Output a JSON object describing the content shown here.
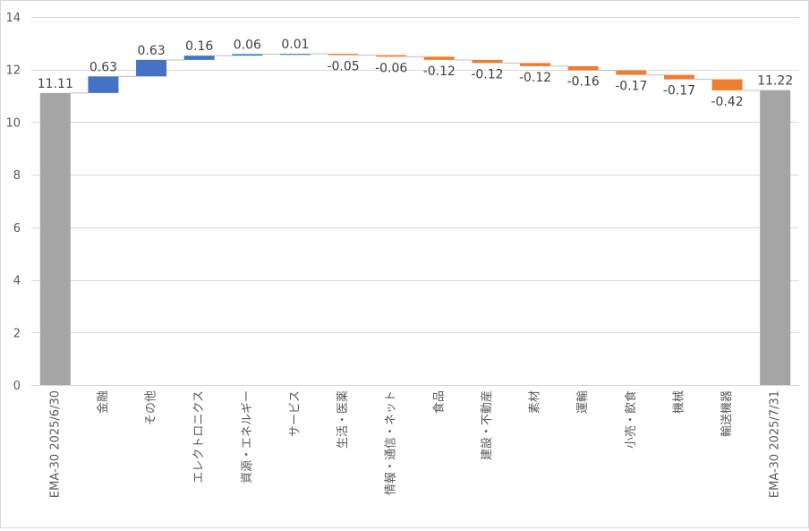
{
  "chart_data": {
    "type": "waterfall",
    "title": "",
    "xlabel": "",
    "ylabel": "",
    "ylim": [
      0,
      14
    ],
    "yticks": [
      0,
      2,
      4,
      6,
      8,
      10,
      12,
      14
    ],
    "grid": true,
    "legend": "none",
    "categories": [
      "EMA-30 2025/6/30",
      "金融",
      "その他",
      "エレクトロニクス",
      "資源・エネルギー",
      "サービス",
      "生活・医薬",
      "情報・通信・ネット",
      "食品",
      "建設・不動産",
      "素材",
      "運輸",
      "小売・飲食",
      "機械",
      "輸送機器",
      "EMA-30 2025/7/31"
    ],
    "values": [
      11.11,
      0.63,
      0.63,
      0.16,
      0.06,
      0.01,
      -0.05,
      -0.06,
      -0.12,
      -0.12,
      -0.12,
      -0.16,
      -0.17,
      -0.17,
      -0.42,
      11.22
    ],
    "labels": [
      "11.11",
      "0.63",
      "0.63",
      "0.16",
      "0.06",
      "0.01",
      "-0.05",
      "-0.06",
      "-0.12",
      "-0.12",
      "-0.12",
      "-0.16",
      "-0.17",
      "-0.17",
      "-0.42",
      "11.22"
    ],
    "kinds": [
      "total",
      "delta",
      "delta",
      "delta",
      "delta",
      "delta",
      "delta",
      "delta",
      "delta",
      "delta",
      "delta",
      "delta",
      "delta",
      "delta",
      "delta",
      "total"
    ],
    "colors": {
      "increase": "#4472c4",
      "decrease": "#ed7d31",
      "total": "#a5a5a5",
      "grid": "#d9d9d9",
      "text": "#404040",
      "tick": "#595959"
    }
  }
}
